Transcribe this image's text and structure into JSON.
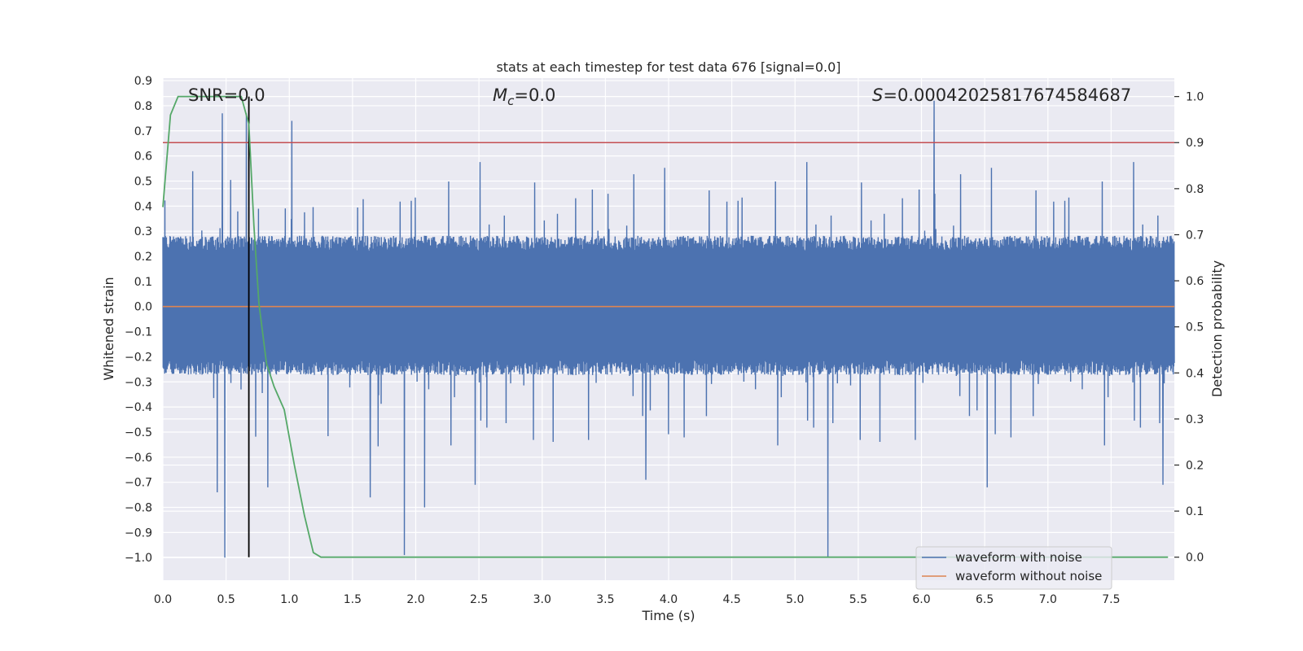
{
  "colors": {
    "background": "#ffffff",
    "plot_background": "#eaeaf2",
    "grid": "#ffffff",
    "waveform_with_noise": "#4c72b0",
    "waveform_without_noise": "#dd8452",
    "detection_probability": "#55a868",
    "threshold_line": "#c44e52",
    "marker_line": "#000000"
  },
  "chart_data": {
    "type": "line",
    "title": "stats at each timestep for test data 676 [signal=0.0]",
    "xlabel": "Time (s)",
    "ylabel": "Whitened strain",
    "y2label": "Detection probability",
    "xlim": [
      0.0,
      8.0
    ],
    "ylim": [
      -1.09,
      0.91
    ],
    "y2lim": [
      -0.05,
      1.04
    ],
    "xticks": [
      "0.0",
      "0.5",
      "1.0",
      "1.5",
      "2.0",
      "2.5",
      "3.0",
      "3.5",
      "4.0",
      "4.5",
      "5.0",
      "5.5",
      "6.0",
      "6.5",
      "7.0",
      "7.5"
    ],
    "yticks": [
      "0.9",
      "0.8",
      "0.7",
      "0.6",
      "0.5",
      "0.4",
      "0.3",
      "0.2",
      "0.1",
      "0.0",
      "−0.1",
      "−0.2",
      "−0.3",
      "−0.4",
      "−0.5",
      "−0.6",
      "−0.7",
      "−0.8",
      "−0.9",
      "−1.0"
    ],
    "y2ticks": [
      "1.0",
      "0.9",
      "0.8",
      "0.7",
      "0.6",
      "0.5",
      "0.4",
      "0.3",
      "0.2",
      "0.1",
      "0.0"
    ],
    "grid": true,
    "legend_position": "bottom-right",
    "annotations": {
      "snr": "SNR=0.0",
      "mc_symbol": "M",
      "mc_subscript": "c",
      "mc_value": "=0.0",
      "s_symbol": "S",
      "s_value": "=0.00042025817674584687"
    },
    "marker_x": 0.68,
    "threshold_y2": 0.9,
    "series": [
      {
        "name": "waveform with noise",
        "axis": "left",
        "style": "noise",
        "duration": 8.0,
        "envelope": [
          0.28,
          -0.27
        ],
        "spike_peaks": [
          {
            "t": 0.47,
            "y": 0.77
          },
          {
            "t": 0.66,
            "y": 0.77
          },
          {
            "t": 1.02,
            "y": 0.74
          },
          {
            "t": 6.1,
            "y": 0.82
          },
          {
            "t": 0.49,
            "y": -1.0
          },
          {
            "t": 1.91,
            "y": -0.99
          },
          {
            "t": 5.26,
            "y": -1.0
          },
          {
            "t": 1.64,
            "y": -0.76
          },
          {
            "t": 2.07,
            "y": -0.8
          },
          {
            "t": 0.83,
            "y": -0.72
          },
          {
            "t": 3.82,
            "y": -0.69
          },
          {
            "t": 6.52,
            "y": -0.72
          },
          {
            "t": 7.91,
            "y": -0.71
          },
          {
            "t": 2.47,
            "y": -0.71
          },
          {
            "t": 0.43,
            "y": -0.74
          }
        ]
      },
      {
        "name": "waveform without noise",
        "axis": "left",
        "x": [
          0.0,
          8.0
        ],
        "values": [
          0.0,
          0.0
        ]
      },
      {
        "axis": "right",
        "x": [
          0.0,
          0.06,
          0.12,
          0.2,
          0.3,
          0.4,
          0.5,
          0.62,
          0.68,
          0.72,
          0.76,
          0.82,
          0.88,
          0.96,
          1.04,
          1.12,
          1.19,
          1.25,
          7.95
        ],
        "values": [
          0.76,
          0.96,
          1.0,
          1.0,
          1.0,
          1.0,
          1.0,
          1.0,
          0.94,
          0.72,
          0.55,
          0.42,
          0.37,
          0.32,
          0.2,
          0.09,
          0.01,
          0.0,
          0.0
        ]
      }
    ]
  }
}
